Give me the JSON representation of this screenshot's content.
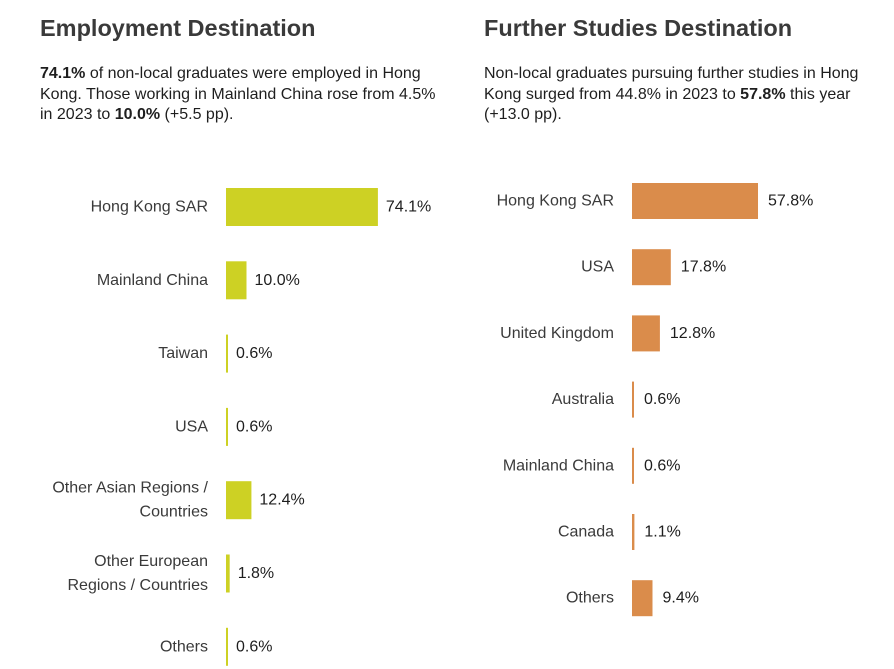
{
  "employment": {
    "title": "Employment Destination",
    "desc": {
      "pct": "74.1%",
      "text1": " of non-local graduates were employed in Hong Kong. Those working in Mainland China rose from 4.5% in 2023 to ",
      "pct2": "10.0%",
      "text2": " (+5.5 pp)."
    },
    "chart_data": {
      "type": "bar",
      "orientation": "horizontal",
      "title": "",
      "categories": [
        [
          "Hong Kong SAR"
        ],
        [
          "Mainland China"
        ],
        [
          "Taiwan"
        ],
        [
          "USA"
        ],
        [
          "Other Asian Regions /",
          "Countries"
        ],
        [
          "Other European",
          "Regions / Countries"
        ],
        [
          "Others"
        ]
      ],
      "values": [
        74.1,
        10.0,
        0.6,
        0.6,
        12.4,
        1.8,
        0.6
      ],
      "value_labels": [
        "74.1%",
        "10.0%",
        "0.6%",
        "0.6%",
        "12.4%",
        "1.8%",
        "0.6%"
      ],
      "unit": "%",
      "color": "#cdd124"
    }
  },
  "further_studies": {
    "title": "Further Studies Destination",
    "desc": {
      "text1": "Non-local graduates pursuing further studies in Hong Kong surged from 44.8% in 2023 to ",
      "pct": "57.8%",
      "text2": " this year (+13.0 pp)."
    },
    "chart_data": {
      "type": "bar",
      "orientation": "horizontal",
      "title": "",
      "categories": [
        [
          "Hong Kong SAR"
        ],
        [
          "USA"
        ],
        [
          "United Kingdom"
        ],
        [
          "Australia"
        ],
        [
          "Mainland China"
        ],
        [
          "Canada"
        ],
        [
          "Others"
        ]
      ],
      "values": [
        57.8,
        17.8,
        12.8,
        0.6,
        0.6,
        1.1,
        9.4
      ],
      "value_labels": [
        "57.8%",
        "17.8%",
        "12.8%",
        "0.6%",
        "0.6%",
        "1.1%",
        "9.4%"
      ],
      "unit": "%",
      "color": "#da8c4b"
    }
  }
}
